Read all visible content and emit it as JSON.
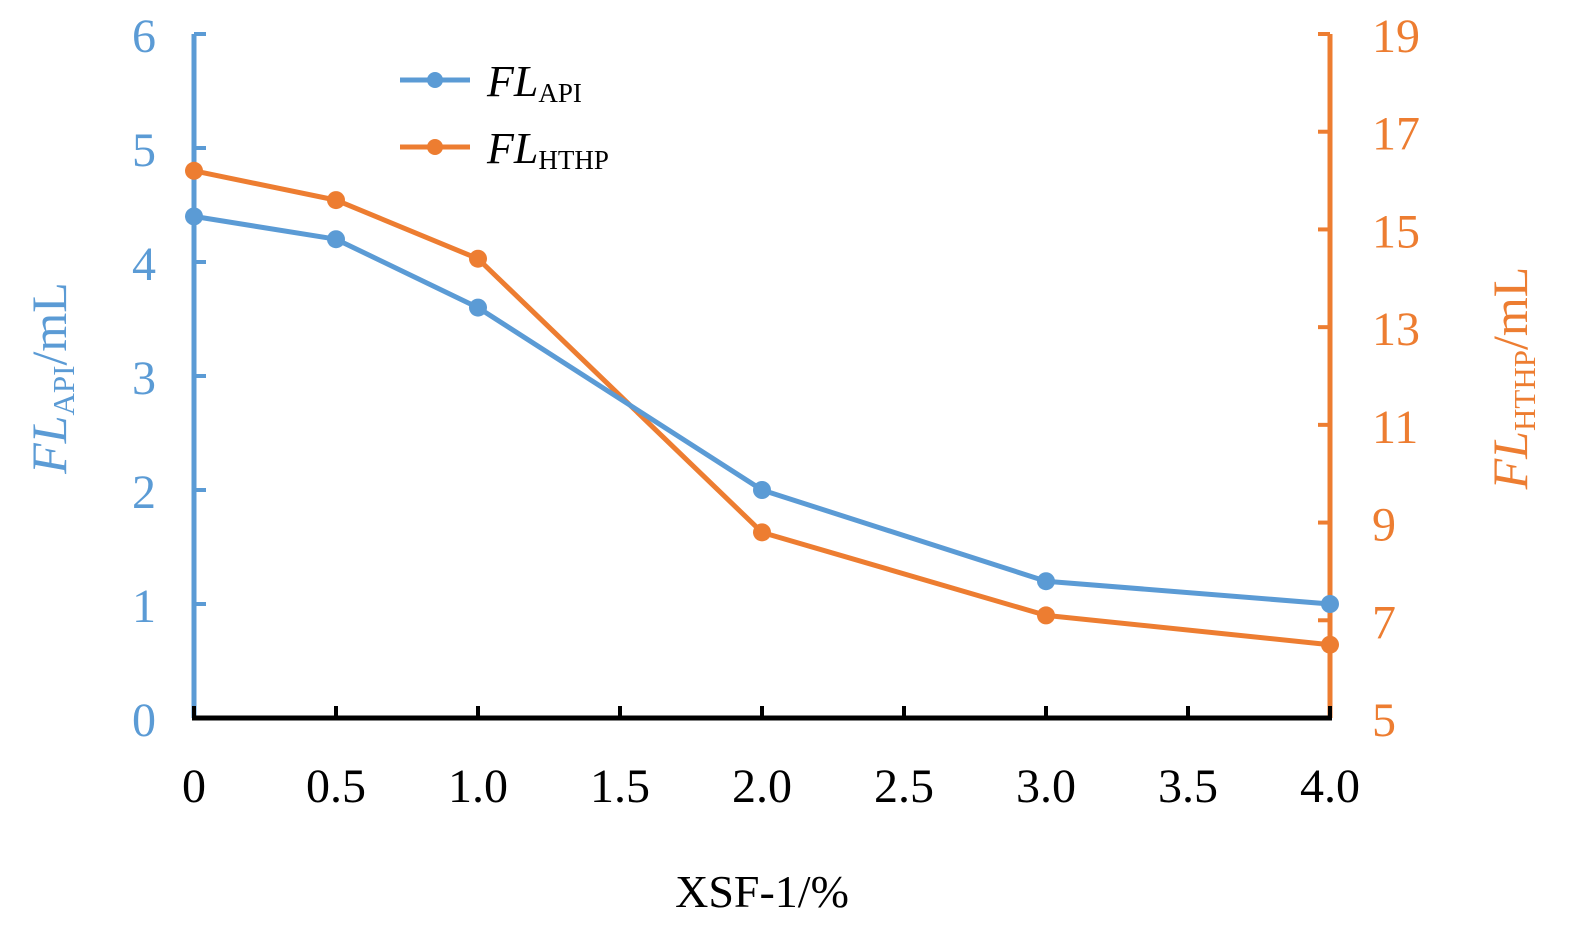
{
  "chart_data": {
    "type": "line",
    "x": [
      0,
      0.5,
      1.0,
      2.0,
      3.0,
      4.0
    ],
    "x_ticks": [
      "0",
      "0.5",
      "1.0",
      "1.5",
      "2.0",
      "2.5",
      "3.0",
      "3.5",
      "4.0"
    ],
    "x_tick_values": [
      0,
      0.5,
      1.0,
      1.5,
      2.0,
      2.5,
      3.0,
      3.5,
      4.0
    ],
    "xlim": [
      0,
      4
    ],
    "xlabel": "XSF-1/%",
    "ylim_left": [
      0,
      6
    ],
    "y_ticks_left": [
      "0",
      "1",
      "2",
      "3",
      "4",
      "5",
      "6"
    ],
    "ylim_right": [
      5,
      19
    ],
    "y_ticks_right": [
      "5",
      "7",
      "9",
      "11",
      "13",
      "15",
      "17",
      "19"
    ],
    "ylabel_left": {
      "main": "FL",
      "sub": "API",
      "unit": "/mL"
    },
    "ylabel_right": {
      "main": "FL",
      "sub": "HTHP",
      "unit": "/mL"
    },
    "grid": false,
    "legend_position": "top-left",
    "series": [
      {
        "name": "FL_API",
        "legend_main": "FL",
        "legend_sub": "API",
        "axis": "left",
        "color": "#5B9BD5",
        "values": [
          4.4,
          4.2,
          3.6,
          2.0,
          1.2,
          1.0
        ]
      },
      {
        "name": "FL_HTHP",
        "legend_main": "FL",
        "legend_sub": "HTHP",
        "axis": "right",
        "color": "#ED7D31",
        "values": [
          16.2,
          15.6,
          14.4,
          8.8,
          7.1,
          6.5
        ]
      }
    ],
    "axis_color_left": "#5B9BD5",
    "axis_color_right": "#ED7D31",
    "axis_color_bottom": "#000000"
  }
}
